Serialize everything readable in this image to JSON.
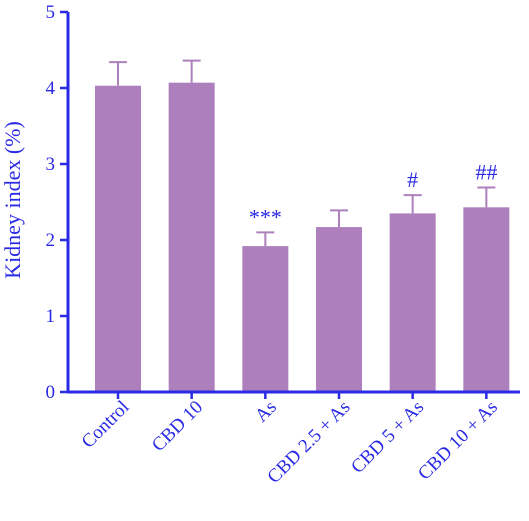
{
  "chart_data": {
    "type": "bar",
    "title": "",
    "xlabel": "",
    "ylabel": "Kidney index (%)",
    "ylim": [
      0,
      5
    ],
    "yticks": [
      "0",
      "1",
      "2",
      "3",
      "4",
      "5"
    ],
    "grid": false,
    "categories": [
      "Control",
      "CBD 10",
      "As",
      "CBD  2.5 + As",
      "CBD  5 + As",
      "CBD  10 + As"
    ],
    "values": [
      4.03,
      4.07,
      1.92,
      2.17,
      2.35,
      2.43
    ],
    "errors": [
      0.31,
      0.29,
      0.18,
      0.22,
      0.24,
      0.26
    ],
    "annotations": [
      "",
      "",
      "***",
      "",
      "#",
      "##"
    ],
    "colors": {
      "bar": "#ad80bd",
      "errorbar": "#ad80bd",
      "axis": "#2a2ae6",
      "text": "#2a2ae6"
    }
  }
}
